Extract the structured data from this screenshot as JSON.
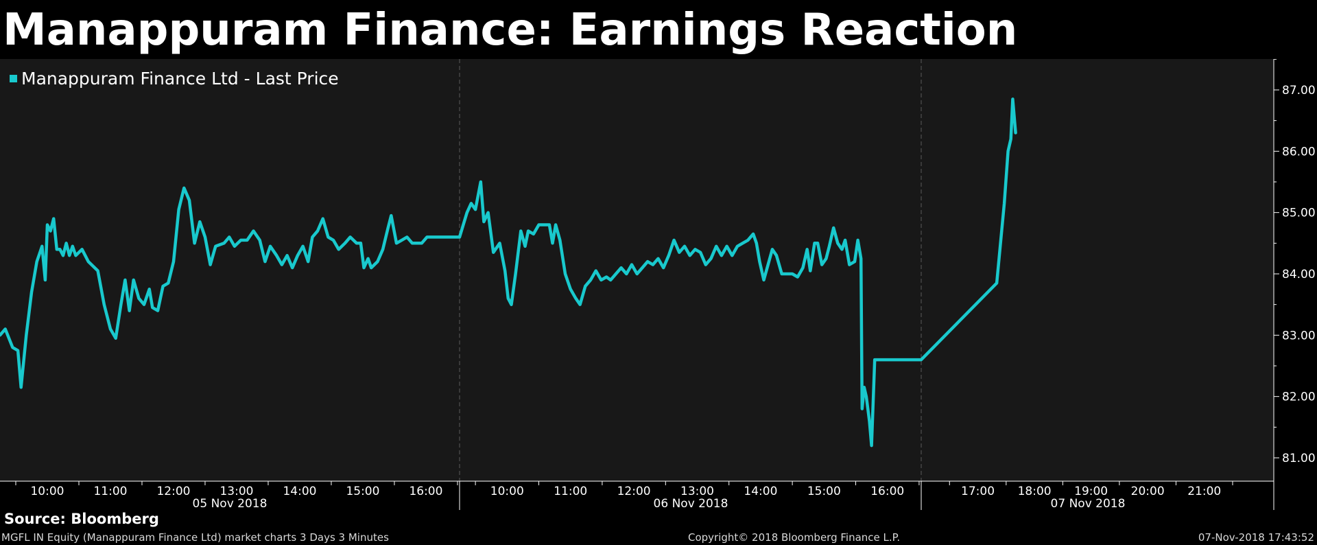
{
  "header": {
    "title": "Manappuram Finance: Earnings Reaction"
  },
  "source_label": "Source: Bloomberg",
  "footer": {
    "left": "MGFL IN Equity (Manappuram Finance Ltd) market charts 3 Days 3 Minutes",
    "center": "Copyright© 2018 Bloomberg Finance L.P.",
    "right": "07-Nov-2018 17:43:52"
  },
  "chart_data": {
    "type": "line",
    "title": "Manappuram Finance: Earnings Reaction",
    "xlabel": "",
    "ylabel": "",
    "ylim": [
      80.5,
      87.5
    ],
    "y_ticks": [
      "81.00",
      "82.00",
      "83.00",
      "84.00",
      "85.00",
      "86.00",
      "87.00"
    ],
    "y_tick_values": [
      81,
      82,
      83,
      84,
      85,
      86,
      87
    ],
    "legend": "top-left",
    "grid": "vertical session separators only",
    "colors": {
      "line": "#19c9cd",
      "background": "#181818",
      "axis": "#ffffff"
    },
    "sessions": [
      {
        "date": "05 Nov 2018",
        "times": [
          "10:00",
          "11:00",
          "12:00",
          "13:00",
          "14:00",
          "15:00",
          "16:00"
        ]
      },
      {
        "date": "06 Nov 2018",
        "times": [
          "10:00",
          "11:00",
          "12:00",
          "13:00",
          "14:00",
          "15:00",
          "16:00"
        ]
      },
      {
        "date": "07 Nov 2018",
        "times": [
          "17:00",
          "18:00",
          "19:00",
          "20:00",
          "21:00"
        ]
      }
    ],
    "series": [
      {
        "name": "Manappuram Finance Ltd - Last Price",
        "points": [
          [
            "05 Nov 09:15",
            83.0
          ],
          [
            "05 Nov 09:20",
            83.1
          ],
          [
            "05 Nov 09:27",
            82.8
          ],
          [
            "05 Nov 09:32",
            82.75
          ],
          [
            "05 Nov 09:35",
            82.15
          ],
          [
            "05 Nov 09:40",
            83.0
          ],
          [
            "05 Nov 09:45",
            83.7
          ],
          [
            "05 Nov 09:50",
            84.2
          ],
          [
            "05 Nov 09:55",
            84.45
          ],
          [
            "05 Nov 09:58",
            83.9
          ],
          [
            "05 Nov 10:00",
            84.8
          ],
          [
            "05 Nov 10:03",
            84.7
          ],
          [
            "05 Nov 10:06",
            84.9
          ],
          [
            "05 Nov 10:09",
            84.4
          ],
          [
            "05 Nov 10:12",
            84.4
          ],
          [
            "05 Nov 10:15",
            84.3
          ],
          [
            "05 Nov 10:18",
            84.5
          ],
          [
            "05 Nov 10:21",
            84.3
          ],
          [
            "05 Nov 10:24",
            84.45
          ],
          [
            "05 Nov 10:27",
            84.3
          ],
          [
            "05 Nov 10:33",
            84.4
          ],
          [
            "05 Nov 10:39",
            84.2
          ],
          [
            "05 Nov 10:48",
            84.05
          ],
          [
            "05 Nov 10:54",
            83.5
          ],
          [
            "05 Nov 11:00",
            83.1
          ],
          [
            "05 Nov 11:05",
            82.95
          ],
          [
            "05 Nov 11:10",
            83.5
          ],
          [
            "05 Nov 11:14",
            83.9
          ],
          [
            "05 Nov 11:18",
            83.4
          ],
          [
            "05 Nov 11:22",
            83.9
          ],
          [
            "05 Nov 11:27",
            83.6
          ],
          [
            "05 Nov 11:32",
            83.5
          ],
          [
            "05 Nov 11:37",
            83.75
          ],
          [
            "05 Nov 11:40",
            83.45
          ],
          [
            "05 Nov 11:45",
            83.4
          ],
          [
            "05 Nov 11:50",
            83.8
          ],
          [
            "05 Nov 11:55",
            83.85
          ],
          [
            "05 Nov 12:00",
            84.2
          ],
          [
            "05 Nov 12:05",
            85.05
          ],
          [
            "05 Nov 12:10",
            85.4
          ],
          [
            "05 Nov 12:15",
            85.2
          ],
          [
            "05 Nov 12:20",
            84.5
          ],
          [
            "05 Nov 12:25",
            84.85
          ],
          [
            "05 Nov 12:30",
            84.6
          ],
          [
            "05 Nov 12:35",
            84.15
          ],
          [
            "05 Nov 12:40",
            84.45
          ],
          [
            "05 Nov 12:48",
            84.5
          ],
          [
            "05 Nov 12:53",
            84.6
          ],
          [
            "05 Nov 12:58",
            84.45
          ],
          [
            "05 Nov 13:04",
            84.55
          ],
          [
            "05 Nov 13:10",
            84.55
          ],
          [
            "05 Nov 13:16",
            84.7
          ],
          [
            "05 Nov 13:22",
            84.55
          ],
          [
            "05 Nov 13:27",
            84.2
          ],
          [
            "05 Nov 13:32",
            84.45
          ],
          [
            "05 Nov 13:38",
            84.3
          ],
          [
            "05 Nov 13:43",
            84.15
          ],
          [
            "05 Nov 13:48",
            84.3
          ],
          [
            "05 Nov 13:53",
            84.1
          ],
          [
            "05 Nov 13:58",
            84.3
          ],
          [
            "05 Nov 14:03",
            84.45
          ],
          [
            "05 Nov 14:08",
            84.2
          ],
          [
            "05 Nov 14:12",
            84.6
          ],
          [
            "05 Nov 14:17",
            84.7
          ],
          [
            "05 Nov 14:22",
            84.9
          ],
          [
            "05 Nov 14:27",
            84.6
          ],
          [
            "05 Nov 14:32",
            84.55
          ],
          [
            "05 Nov 14:37",
            84.4
          ],
          [
            "05 Nov 14:43",
            84.5
          ],
          [
            "05 Nov 14:48",
            84.6
          ],
          [
            "05 Nov 14:54",
            84.5
          ],
          [
            "05 Nov 14:58",
            84.5
          ],
          [
            "05 Nov 15:01",
            84.1
          ],
          [
            "05 Nov 15:05",
            84.25
          ],
          [
            "05 Nov 15:08",
            84.1
          ],
          [
            "05 Nov 15:14",
            84.2
          ],
          [
            "05 Nov 15:19",
            84.4
          ],
          [
            "05 Nov 15:24",
            84.75
          ],
          [
            "05 Nov 15:27",
            84.95
          ],
          [
            "05 Nov 15:32",
            84.5
          ],
          [
            "05 Nov 15:37",
            84.55
          ],
          [
            "05 Nov 15:42",
            84.6
          ],
          [
            "05 Nov 15:47",
            84.5
          ],
          [
            "05 Nov 15:56",
            84.5
          ],
          [
            "05 Nov 16:01",
            84.6
          ],
          [
            "05 Nov 16:30",
            84.6
          ],
          [
            "05 Nov 16:32",
            84.6
          ],
          [
            "06 Nov 09:15",
            84.6
          ],
          [
            "06 Nov 09:22",
            85.0
          ],
          [
            "06 Nov 09:26",
            85.15
          ],
          [
            "06 Nov 09:30",
            85.05
          ],
          [
            "06 Nov 09:35",
            85.5
          ],
          [
            "06 Nov 09:38",
            84.85
          ],
          [
            "06 Nov 09:42",
            85.0
          ],
          [
            "06 Nov 09:47",
            84.35
          ],
          [
            "06 Nov 09:53",
            84.5
          ],
          [
            "06 Nov 09:58",
            84.05
          ],
          [
            "06 Nov 10:01",
            83.6
          ],
          [
            "06 Nov 10:04",
            83.5
          ],
          [
            "06 Nov 10:08",
            84.0
          ],
          [
            "06 Nov 10:13",
            84.7
          ],
          [
            "06 Nov 10:17",
            84.45
          ],
          [
            "06 Nov 10:20",
            84.7
          ],
          [
            "06 Nov 10:25",
            84.65
          ],
          [
            "06 Nov 10:30",
            84.8
          ],
          [
            "06 Nov 10:35",
            84.8
          ],
          [
            "06 Nov 10:40",
            84.8
          ],
          [
            "06 Nov 10:43",
            84.5
          ],
          [
            "06 Nov 10:46",
            84.8
          ],
          [
            "06 Nov 10:50",
            84.55
          ],
          [
            "06 Nov 10:55",
            84.0
          ],
          [
            "06 Nov 11:00",
            83.75
          ],
          [
            "06 Nov 11:05",
            83.6
          ],
          [
            "06 Nov 11:09",
            83.5
          ],
          [
            "06 Nov 11:14",
            83.8
          ],
          [
            "06 Nov 11:19",
            83.9
          ],
          [
            "06 Nov 11:24",
            84.05
          ],
          [
            "06 Nov 11:29",
            83.9
          ],
          [
            "06 Nov 11:34",
            83.95
          ],
          [
            "06 Nov 11:38",
            83.9
          ],
          [
            "06 Nov 11:43",
            84.0
          ],
          [
            "06 Nov 11:48",
            84.1
          ],
          [
            "06 Nov 11:53",
            84.0
          ],
          [
            "06 Nov 11:58",
            84.15
          ],
          [
            "06 Nov 12:03",
            84.0
          ],
          [
            "06 Nov 12:08",
            84.1
          ],
          [
            "06 Nov 12:13",
            84.2
          ],
          [
            "06 Nov 12:18",
            84.15
          ],
          [
            "06 Nov 12:23",
            84.25
          ],
          [
            "06 Nov 12:28",
            84.1
          ],
          [
            "06 Nov 12:33",
            84.3
          ],
          [
            "06 Nov 12:38",
            84.55
          ],
          [
            "06 Nov 12:43",
            84.35
          ],
          [
            "06 Nov 12:48",
            84.45
          ],
          [
            "06 Nov 12:53",
            84.3
          ],
          [
            "06 Nov 12:58",
            84.4
          ],
          [
            "06 Nov 13:03",
            84.35
          ],
          [
            "06 Nov 13:08",
            84.15
          ],
          [
            "06 Nov 13:13",
            84.25
          ],
          [
            "06 Nov 13:18",
            84.45
          ],
          [
            "06 Nov 13:23",
            84.3
          ],
          [
            "06 Nov 13:28",
            84.45
          ],
          [
            "06 Nov 13:33",
            84.3
          ],
          [
            "06 Nov 13:38",
            84.45
          ],
          [
            "06 Nov 13:43",
            84.5
          ],
          [
            "06 Nov 13:48",
            84.55
          ],
          [
            "06 Nov 13:53",
            84.65
          ],
          [
            "06 Nov 13:56",
            84.5
          ],
          [
            "06 Nov 13:59",
            84.2
          ],
          [
            "06 Nov 14:03",
            83.9
          ],
          [
            "06 Nov 14:07",
            84.15
          ],
          [
            "06 Nov 14:11",
            84.4
          ],
          [
            "06 Nov 14:15",
            84.3
          ],
          [
            "06 Nov 14:20",
            84.0
          ],
          [
            "06 Nov 14:30",
            84.0
          ],
          [
            "06 Nov 14:35",
            83.95
          ],
          [
            "06 Nov 14:40",
            84.1
          ],
          [
            "06 Nov 14:44",
            84.4
          ],
          [
            "06 Nov 14:47",
            84.05
          ],
          [
            "06 Nov 14:51",
            84.5
          ],
          [
            "06 Nov 14:54",
            84.5
          ],
          [
            "06 Nov 14:58",
            84.15
          ],
          [
            "06 Nov 15:02",
            84.25
          ],
          [
            "06 Nov 15:05",
            84.45
          ],
          [
            "06 Nov 15:09",
            84.75
          ],
          [
            "06 Nov 15:13",
            84.5
          ],
          [
            "06 Nov 15:17",
            84.4
          ],
          [
            "06 Nov 15:20",
            84.55
          ],
          [
            "06 Nov 15:24",
            84.15
          ],
          [
            "06 Nov 15:29",
            84.2
          ],
          [
            "06 Nov 15:32",
            84.55
          ],
          [
            "06 Nov 15:35",
            84.25
          ],
          [
            "06 Nov 15:36",
            81.8
          ],
          [
            "06 Nov 15:38",
            82.15
          ],
          [
            "06 Nov 15:40",
            82.0
          ],
          [
            "06 Nov 15:43",
            81.6
          ],
          [
            "06 Nov 15:45",
            81.2
          ],
          [
            "06 Nov 15:48",
            82.6
          ],
          [
            "06 Nov 16:00",
            82.6
          ],
          [
            "06 Nov 16:32",
            82.6
          ],
          [
            "07 Nov 09:15",
            82.6
          ],
          [
            "07 Nov 17:20",
            83.85
          ],
          [
            "07 Nov 17:28",
            85.15
          ],
          [
            "07 Nov 17:32",
            86.0
          ],
          [
            "07 Nov 17:35",
            86.2
          ],
          [
            "07 Nov 17:37",
            86.85
          ],
          [
            "07 Nov 17:40",
            86.3
          ]
        ]
      }
    ]
  }
}
